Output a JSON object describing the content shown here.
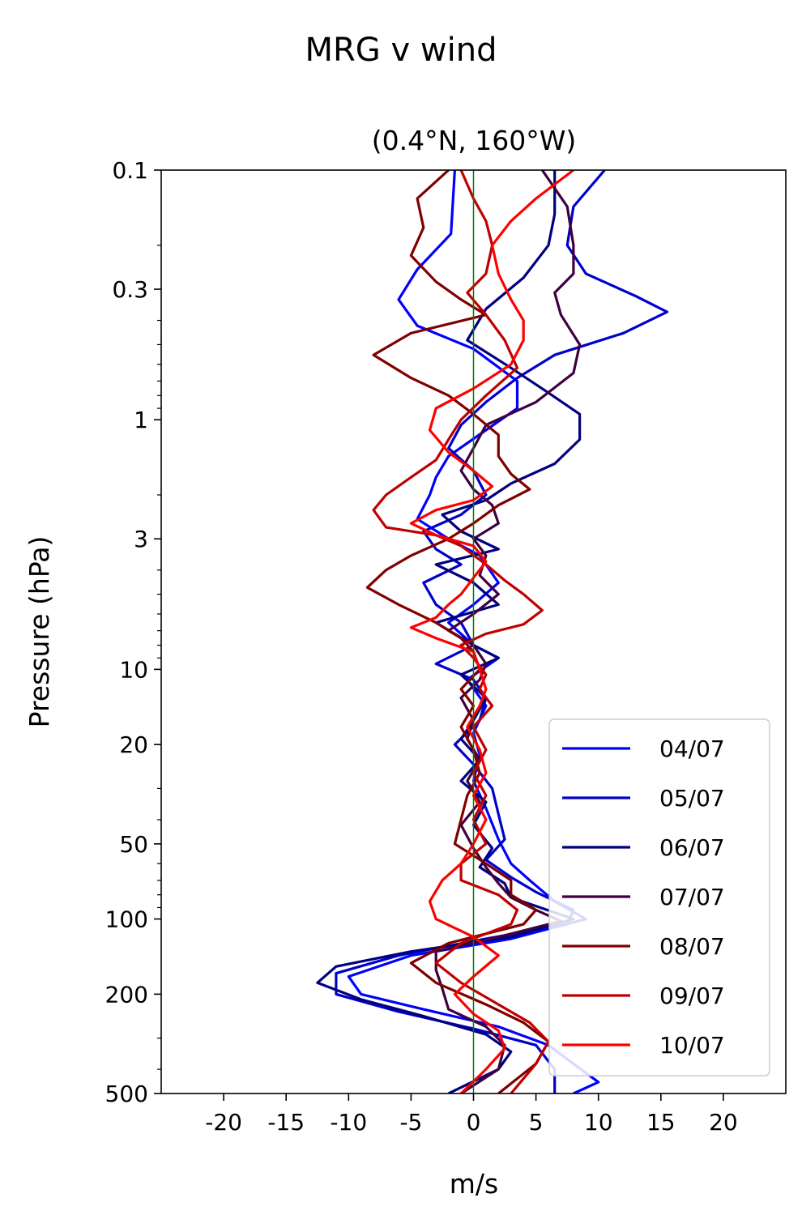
{
  "chart_data": {
    "type": "line",
    "title": "MRG v wind",
    "subtitle": "(0.4°N, 160°W)",
    "xlabel": "m/s",
    "ylabel": "Pressure (hPa)",
    "xlim": [
      -25,
      25
    ],
    "ylim": [
      500,
      0.1
    ],
    "y_scale": "log",
    "x_ticks": [
      -20,
      -15,
      -10,
      -5,
      0,
      5,
      10,
      15,
      20
    ],
    "x_tick_labels": [
      "-20",
      "-15",
      "-10",
      "-5",
      "0",
      "5",
      "10",
      "15",
      "20"
    ],
    "y_ticks": [
      0.1,
      0.3,
      1,
      3,
      10,
      20,
      50,
      100,
      200,
      500
    ],
    "y_tick_labels": [
      "0.1",
      "0.3",
      "1",
      "3",
      "10",
      "20",
      "50",
      "100",
      "200",
      "500"
    ],
    "zero_line_color": "#008000",
    "grid": false,
    "legend_position": "lower-right",
    "series": [
      {
        "name": "04/07",
        "color": "#0000ff",
        "points": [
          [
            -1.5,
            0.1
          ],
          [
            -1.8,
            0.18
          ],
          [
            -4.5,
            0.25
          ],
          [
            -6,
            0.33
          ],
          [
            -4.5,
            0.42
          ],
          [
            0,
            0.52
          ],
          [
            3.5,
            0.7
          ],
          [
            3.5,
            0.9
          ],
          [
            1,
            1.1
          ],
          [
            -2,
            1.4
          ],
          [
            -3,
            1.7
          ],
          [
            -3.5,
            2.0
          ],
          [
            -4.5,
            2.5
          ],
          [
            -2,
            3.0
          ],
          [
            0.5,
            3.5
          ],
          [
            2,
            4.5
          ],
          [
            0,
            5.5
          ],
          [
            -2,
            6.5
          ],
          [
            0,
            8
          ],
          [
            2,
            9
          ],
          [
            -0.5,
            11
          ],
          [
            1,
            14
          ],
          [
            0,
            18
          ],
          [
            0.5,
            22
          ],
          [
            0,
            28
          ],
          [
            1,
            36
          ],
          [
            2,
            48
          ],
          [
            3,
            60
          ],
          [
            4.5,
            70
          ],
          [
            6.5,
            85
          ],
          [
            9,
            100
          ],
          [
            3,
            120
          ],
          [
            -5,
            140
          ],
          [
            -10,
            170
          ],
          [
            -9,
            200
          ],
          [
            -4,
            230
          ],
          [
            2,
            270
          ],
          [
            6,
            320
          ],
          [
            8,
            380
          ],
          [
            10,
            450
          ],
          [
            8,
            500
          ]
        ]
      },
      {
        "name": "05/07",
        "color": "#0000cc",
        "points": [
          [
            10.5,
            0.1
          ],
          [
            8,
            0.14
          ],
          [
            7.5,
            0.2
          ],
          [
            9,
            0.26
          ],
          [
            13,
            0.32
          ],
          [
            15.5,
            0.37
          ],
          [
            12,
            0.45
          ],
          [
            6.5,
            0.55
          ],
          [
            3.5,
            0.68
          ],
          [
            1,
            0.85
          ],
          [
            -1,
            1.05
          ],
          [
            -2,
            1.3
          ],
          [
            0,
            1.6
          ],
          [
            1,
            2.0
          ],
          [
            -1,
            2.4
          ],
          [
            -4,
            2.8
          ],
          [
            -3,
            3.3
          ],
          [
            -1,
            3.8
          ],
          [
            -4,
            4.5
          ],
          [
            -3,
            5.5
          ],
          [
            -1,
            6.5
          ],
          [
            0,
            8
          ],
          [
            -3,
            9.5
          ],
          [
            0,
            11
          ],
          [
            1,
            13
          ],
          [
            0.5,
            16
          ],
          [
            -1.5,
            20
          ],
          [
            0,
            24
          ],
          [
            1.5,
            30
          ],
          [
            2,
            38
          ],
          [
            2.5,
            48
          ],
          [
            1,
            58
          ],
          [
            3,
            68
          ],
          [
            5,
            78
          ],
          [
            8,
            92
          ],
          [
            7.5,
            105
          ],
          [
            1,
            120
          ],
          [
            -6,
            140
          ],
          [
            -11,
            165
          ],
          [
            -11,
            200
          ],
          [
            -6,
            235
          ],
          [
            0,
            275
          ],
          [
            5,
            320
          ],
          [
            6.5,
            400
          ],
          [
            6.5,
            500
          ]
        ]
      },
      {
        "name": "06/07",
        "color": "#00007f",
        "points": [
          [
            6.5,
            0.1
          ],
          [
            6.5,
            0.15
          ],
          [
            6,
            0.2
          ],
          [
            4,
            0.27
          ],
          [
            1,
            0.36
          ],
          [
            -0.5,
            0.48
          ],
          [
            3,
            0.62
          ],
          [
            6,
            0.78
          ],
          [
            8.5,
            0.95
          ],
          [
            8.5,
            1.2
          ],
          [
            6.5,
            1.5
          ],
          [
            3,
            1.8
          ],
          [
            1,
            2.1
          ],
          [
            -2.5,
            2.4
          ],
          [
            -1,
            2.8
          ],
          [
            2,
            3.3
          ],
          [
            -3,
            3.8
          ],
          [
            0,
            4.5
          ],
          [
            2,
            5.5
          ],
          [
            -3,
            6.5
          ],
          [
            0,
            8
          ],
          [
            2,
            9
          ],
          [
            -1,
            10.5
          ],
          [
            1,
            13
          ],
          [
            0,
            16
          ],
          [
            -1,
            19
          ],
          [
            0.5,
            23
          ],
          [
            -1,
            28
          ],
          [
            1,
            34
          ],
          [
            0,
            42
          ],
          [
            1.5,
            52
          ],
          [
            0.5,
            62
          ],
          [
            2.5,
            72
          ],
          [
            3,
            82
          ],
          [
            8,
            100
          ],
          [
            3,
            118
          ],
          [
            -5,
            135
          ],
          [
            -11,
            155
          ],
          [
            -12.5,
            180
          ],
          [
            -9,
            210
          ],
          [
            -4,
            245
          ],
          [
            1,
            290
          ],
          [
            3,
            340
          ],
          [
            2,
            400
          ],
          [
            -2,
            500
          ]
        ]
      },
      {
        "name": "07/07",
        "color": "#3f003f",
        "points": [
          [
            5.5,
            0.1
          ],
          [
            7.5,
            0.14
          ],
          [
            8,
            0.2
          ],
          [
            8,
            0.26
          ],
          [
            6.5,
            0.31
          ],
          [
            7,
            0.38
          ],
          [
            8.5,
            0.5
          ],
          [
            8,
            0.65
          ],
          [
            5,
            0.85
          ],
          [
            1,
            1.05
          ],
          [
            0,
            1.3
          ],
          [
            -1,
            1.6
          ],
          [
            0,
            1.9
          ],
          [
            1.5,
            2.2
          ],
          [
            2,
            2.6
          ],
          [
            0,
            3.0
          ],
          [
            1,
            3.5
          ],
          [
            0.5,
            4.2
          ],
          [
            2,
            5
          ],
          [
            0,
            6
          ],
          [
            -2,
            7
          ],
          [
            0,
            8
          ],
          [
            1,
            9.5
          ],
          [
            0.5,
            11
          ],
          [
            -1,
            13
          ],
          [
            0,
            16
          ],
          [
            -0.5,
            19
          ],
          [
            0.5,
            23
          ],
          [
            -0.5,
            28
          ],
          [
            0.5,
            34
          ],
          [
            -1,
            42
          ],
          [
            0,
            52
          ],
          [
            1,
            62
          ],
          [
            2,
            72
          ],
          [
            3,
            82
          ],
          [
            5,
            92
          ],
          [
            7,
            102
          ],
          [
            2,
            118
          ],
          [
            -3,
            135
          ],
          [
            -3,
            160
          ],
          [
            -2.5,
            190
          ],
          [
            -2,
            230
          ],
          [
            1,
            270
          ],
          [
            2.5,
            320
          ],
          [
            2,
            400
          ],
          [
            -1,
            500
          ]
        ]
      },
      {
        "name": "08/07",
        "color": "#7f0000",
        "points": [
          [
            -2,
            0.1
          ],
          [
            -4.5,
            0.13
          ],
          [
            -4,
            0.17
          ],
          [
            -5,
            0.22
          ],
          [
            -3,
            0.28
          ],
          [
            -1,
            0.33
          ],
          [
            1,
            0.38
          ],
          [
            -5,
            0.45
          ],
          [
            -8,
            0.55
          ],
          [
            -5,
            0.68
          ],
          [
            -2,
            0.8
          ],
          [
            0,
            0.95
          ],
          [
            2,
            1.15
          ],
          [
            2,
            1.4
          ],
          [
            3,
            1.65
          ],
          [
            4.5,
            1.9
          ],
          [
            2,
            2.2
          ],
          [
            0,
            2.6
          ],
          [
            -2,
            3.0
          ],
          [
            -5,
            3.5
          ],
          [
            -7,
            4.0
          ],
          [
            -8.5,
            4.7
          ],
          [
            -6,
            5.5
          ],
          [
            -3,
            6.5
          ],
          [
            -1,
            7.5
          ],
          [
            0,
            8.5
          ],
          [
            0.5,
            10
          ],
          [
            -1,
            12
          ],
          [
            0,
            14
          ],
          [
            -1,
            17
          ],
          [
            0,
            21
          ],
          [
            0.5,
            26
          ],
          [
            -0.5,
            32
          ],
          [
            -1,
            40
          ],
          [
            -1.5,
            50
          ],
          [
            1,
            60
          ],
          [
            3,
            70
          ],
          [
            3,
            80
          ],
          [
            5,
            92
          ],
          [
            4,
            105
          ],
          [
            -2,
            125
          ],
          [
            -5,
            150
          ],
          [
            -3,
            180
          ],
          [
            1,
            220
          ],
          [
            4,
            260
          ],
          [
            6,
            310
          ],
          [
            5,
            380
          ],
          [
            2,
            500
          ]
        ]
      },
      {
        "name": "09/07",
        "color": "#bf0000",
        "points": [
          [
            -1,
            0.1
          ],
          [
            0,
            0.13
          ],
          [
            1,
            0.16
          ],
          [
            1.5,
            0.2
          ],
          [
            1,
            0.26
          ],
          [
            -0.5,
            0.31
          ],
          [
            1,
            0.38
          ],
          [
            2.5,
            0.48
          ],
          [
            3.5,
            0.62
          ],
          [
            1,
            0.8
          ],
          [
            -1,
            1.0
          ],
          [
            -2,
            1.2
          ],
          [
            -3,
            1.45
          ],
          [
            -5,
            1.7
          ],
          [
            -7,
            2.0
          ],
          [
            -8,
            2.3
          ],
          [
            -7,
            2.7
          ],
          [
            -3,
            2.9
          ],
          [
            -1,
            3.2
          ],
          [
            1,
            3.8
          ],
          [
            2.5,
            4.4
          ],
          [
            4,
            5
          ],
          [
            5.5,
            5.8
          ],
          [
            4,
            6.6
          ],
          [
            1,
            7.2
          ],
          [
            -1,
            8
          ],
          [
            0,
            9
          ],
          [
            1,
            10.5
          ],
          [
            0.5,
            12
          ],
          [
            1.5,
            14
          ],
          [
            0,
            17
          ],
          [
            1,
            21
          ],
          [
            0,
            26
          ],
          [
            1,
            32
          ],
          [
            0,
            40
          ],
          [
            1,
            50
          ],
          [
            -1,
            60
          ],
          [
            -1,
            70
          ],
          [
            2,
            80
          ],
          [
            3.5,
            92
          ],
          [
            3,
            105
          ],
          [
            -1,
            125
          ],
          [
            -3,
            150
          ],
          [
            -1,
            180
          ],
          [
            2,
            220
          ],
          [
            4.5,
            260
          ],
          [
            6,
            310
          ],
          [
            5,
            380
          ],
          [
            3,
            500
          ]
        ]
      },
      {
        "name": "10/07",
        "color": "#ff0000",
        "points": [
          [
            8,
            0.1
          ],
          [
            5,
            0.13
          ],
          [
            3,
            0.16
          ],
          [
            1.5,
            0.2
          ],
          [
            2,
            0.26
          ],
          [
            3,
            0.33
          ],
          [
            4,
            0.4
          ],
          [
            4,
            0.48
          ],
          [
            3,
            0.6
          ],
          [
            0,
            0.75
          ],
          [
            -3,
            0.9
          ],
          [
            -3.5,
            1.1
          ],
          [
            -2,
            1.35
          ],
          [
            0,
            1.6
          ],
          [
            1.5,
            1.85
          ],
          [
            0,
            2.1
          ],
          [
            -3,
            2.3
          ],
          [
            -5,
            2.6
          ],
          [
            -3,
            2.9
          ],
          [
            0,
            3.2
          ],
          [
            1,
            3.7
          ],
          [
            0,
            4.3
          ],
          [
            -1,
            5
          ],
          [
            -2,
            5.5
          ],
          [
            -3,
            6.2
          ],
          [
            -5,
            6.8
          ],
          [
            -3,
            7.5
          ],
          [
            0,
            8.5
          ],
          [
            0.5,
            10
          ],
          [
            1,
            12
          ],
          [
            0.5,
            14
          ],
          [
            -0.5,
            17
          ],
          [
            0.5,
            21
          ],
          [
            1,
            26
          ],
          [
            0,
            32
          ],
          [
            1,
            40
          ],
          [
            0,
            50
          ],
          [
            -1,
            60
          ],
          [
            -2.5,
            70
          ],
          [
            -3.5,
            85
          ],
          [
            -3,
            100
          ],
          [
            0,
            118
          ],
          [
            2,
            140
          ],
          [
            0,
            170
          ],
          [
            -1.5,
            200
          ],
          [
            0,
            240
          ],
          [
            2,
            280
          ],
          [
            2.5,
            330
          ],
          [
            1,
            400
          ],
          [
            -1,
            500
          ]
        ]
      }
    ]
  }
}
